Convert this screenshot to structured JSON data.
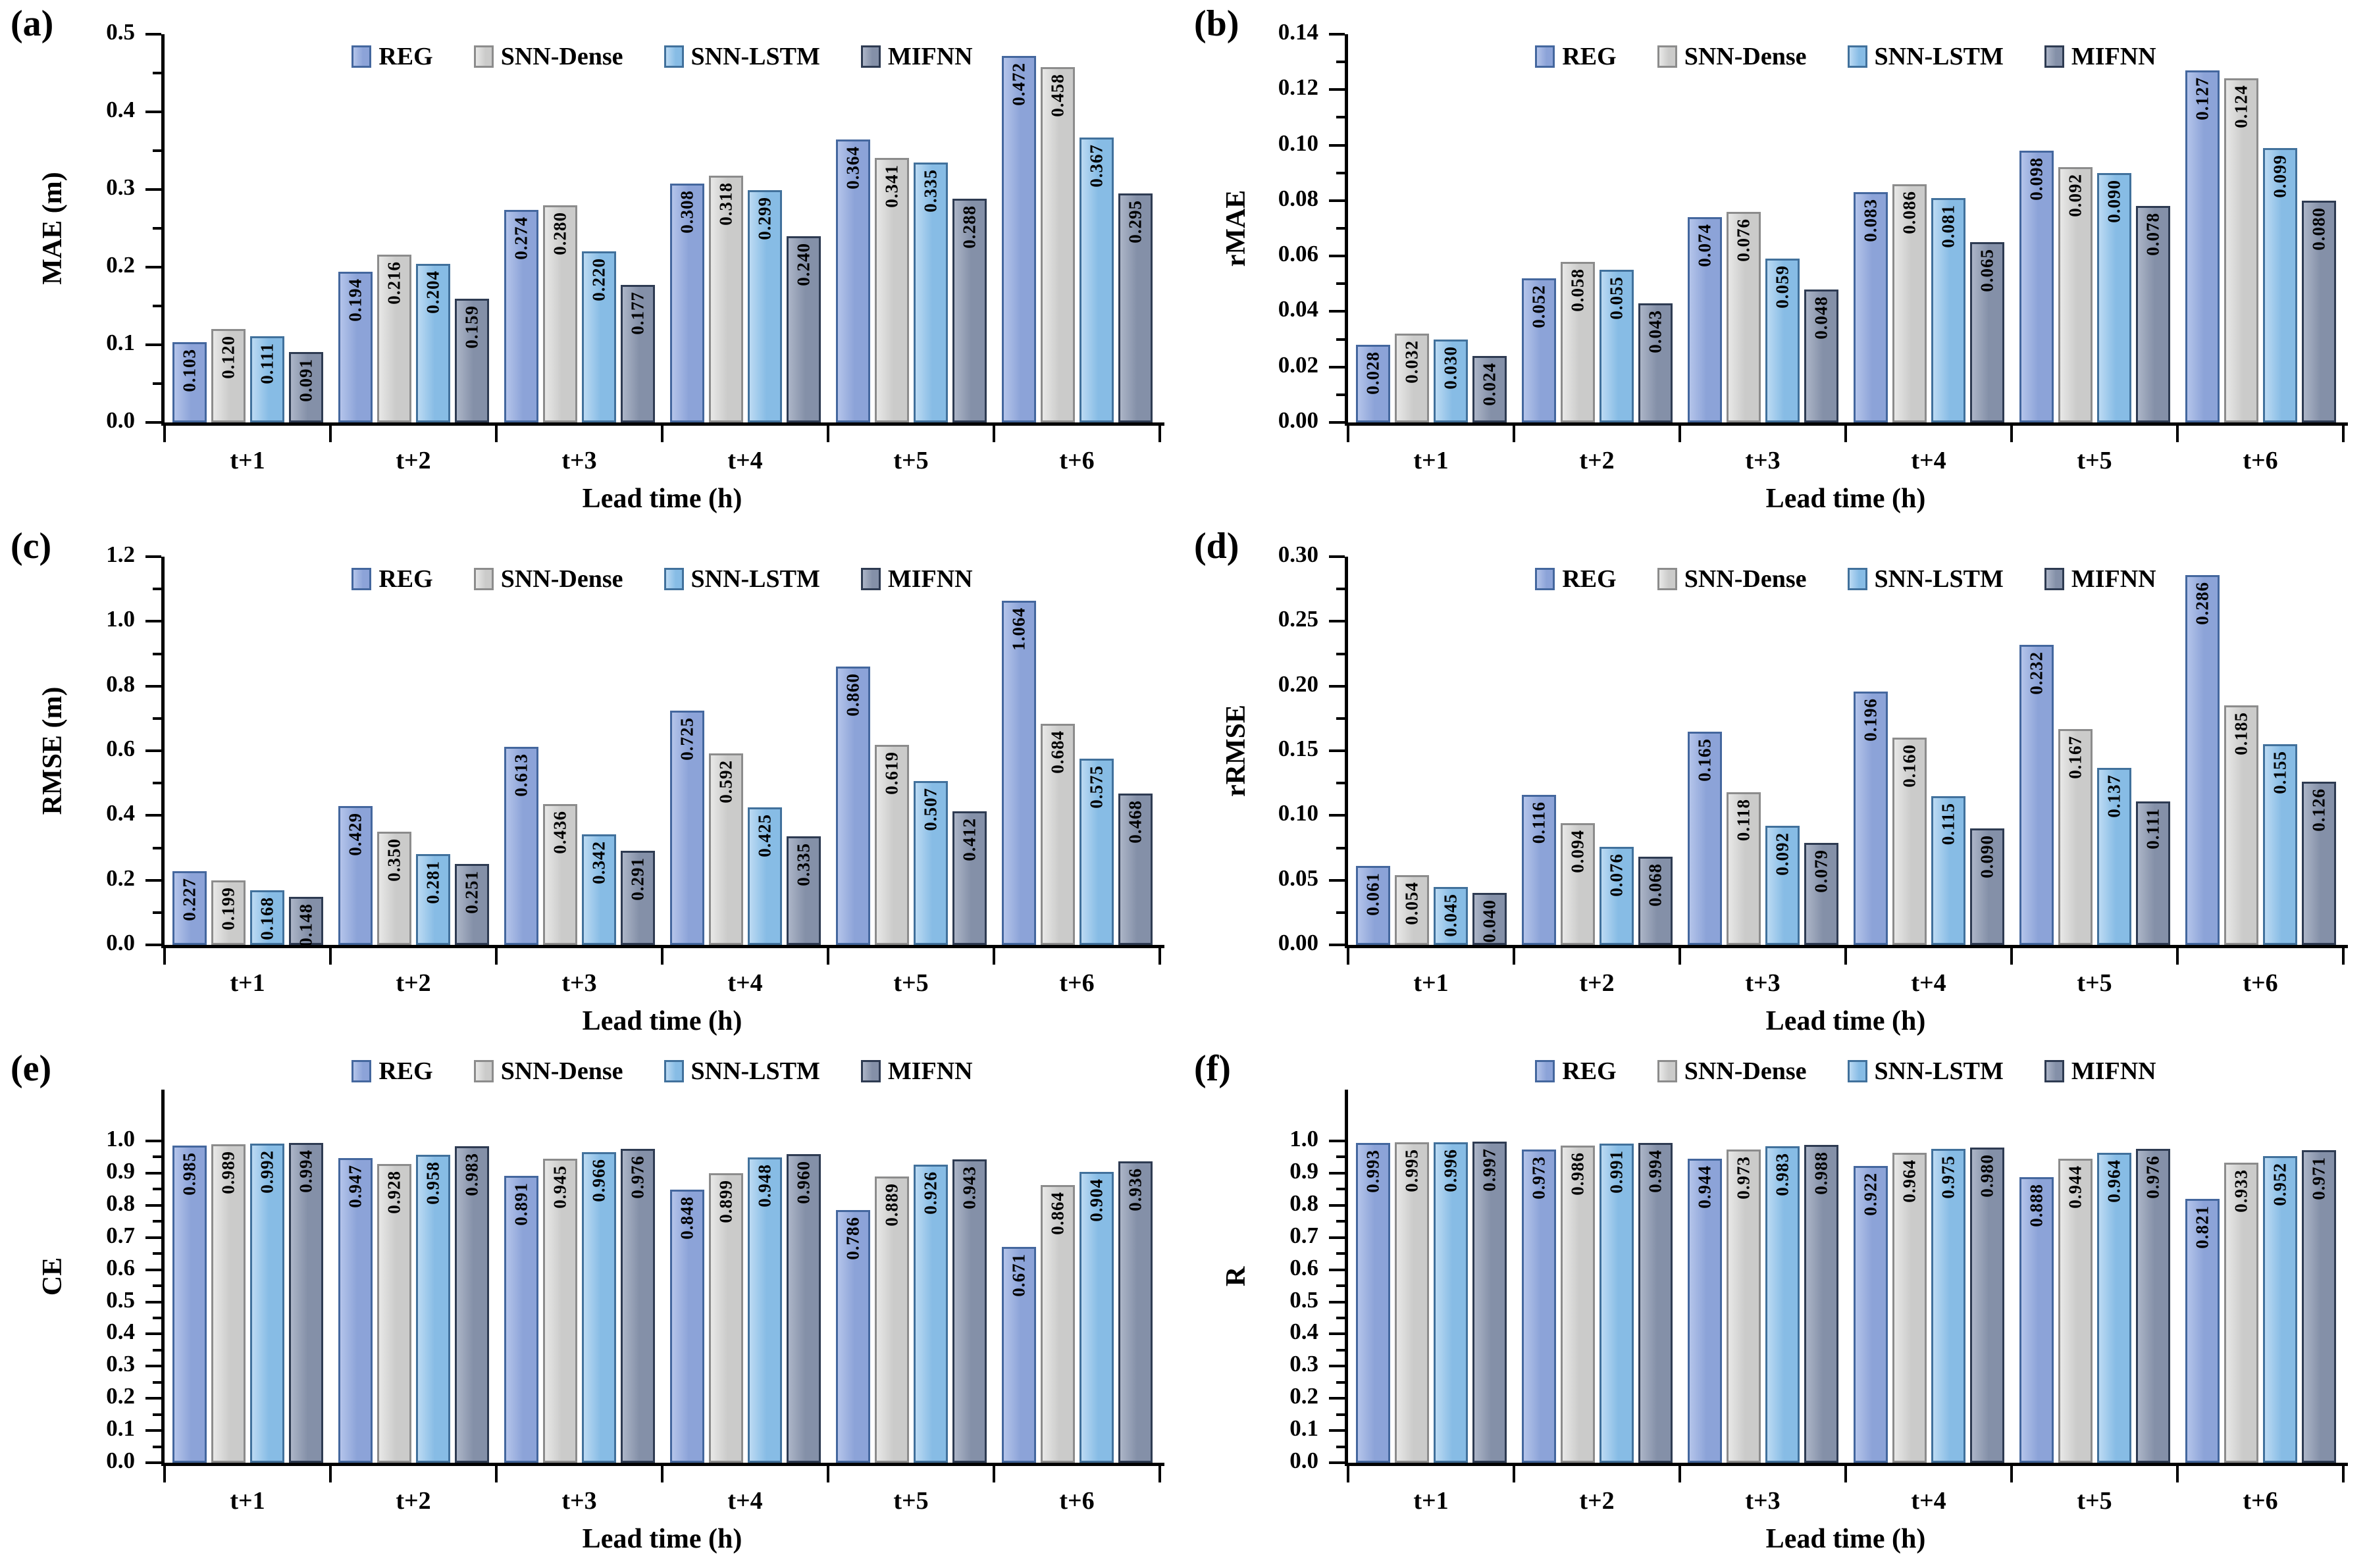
{
  "figure": {
    "xlabel": "Lead time (h)",
    "categories": [
      "t+1",
      "t+2",
      "t+3",
      "t+4",
      "t+5",
      "t+6"
    ],
    "legend": [
      "REG",
      "SNN-Dense",
      "SNN-LSTM",
      "MIFNN"
    ],
    "series_colors": [
      {
        "name": "REG",
        "fill": "#8CA3D8",
        "fill_light": "#B4C4EA",
        "border": "#44679E"
      },
      {
        "name": "SNN-Dense",
        "fill": "#CBCBCA",
        "fill_light": "#E8E8E7",
        "border": "#8C8C8C"
      },
      {
        "name": "SNN-LSTM",
        "fill": "#87BCE5",
        "fill_light": "#BBDAF3",
        "border": "#41719C"
      },
      {
        "name": "MIFNN",
        "fill": "#8490A8",
        "fill_light": "#ACB5C7",
        "border": "#2E3B52"
      }
    ]
  },
  "chart_data": [
    {
      "panel_label": "(a)",
      "type": "bar",
      "ylabel": "MAE (m)",
      "xlabel": "Lead time (h)",
      "ylim": [
        0,
        0.5
      ],
      "ytick_step": 0.1,
      "ytick_decimals": 1,
      "legend_position": "inside-top",
      "categories": [
        "t+1",
        "t+2",
        "t+3",
        "t+4",
        "t+5",
        "t+6"
      ],
      "series": [
        {
          "name": "REG",
          "values": [
            0.103,
            0.194,
            0.274,
            0.308,
            0.364,
            0.472
          ]
        },
        {
          "name": "SNN-Dense",
          "values": [
            0.12,
            0.216,
            0.28,
            0.318,
            0.341,
            0.458
          ]
        },
        {
          "name": "SNN-LSTM",
          "values": [
            0.111,
            0.204,
            0.22,
            0.299,
            0.335,
            0.367
          ]
        },
        {
          "name": "MIFNN",
          "values": [
            0.091,
            0.159,
            0.177,
            0.24,
            0.288,
            0.295
          ]
        }
      ]
    },
    {
      "panel_label": "(b)",
      "type": "bar",
      "ylabel": "rMAE",
      "xlabel": "Lead time (h)",
      "ylim": [
        0,
        0.14
      ],
      "ytick_step": 0.02,
      "ytick_decimals": 2,
      "legend_position": "inside-top",
      "categories": [
        "t+1",
        "t+2",
        "t+3",
        "t+4",
        "t+5",
        "t+6"
      ],
      "series": [
        {
          "name": "REG",
          "values": [
            0.028,
            0.052,
            0.074,
            0.083,
            0.098,
            0.127
          ]
        },
        {
          "name": "SNN-Dense",
          "values": [
            0.032,
            0.058,
            0.076,
            0.086,
            0.092,
            0.124
          ]
        },
        {
          "name": "SNN-LSTM",
          "values": [
            0.03,
            0.055,
            0.059,
            0.081,
            0.09,
            0.099
          ]
        },
        {
          "name": "MIFNN",
          "values": [
            0.024,
            0.043,
            0.048,
            0.065,
            0.078,
            0.08
          ]
        }
      ]
    },
    {
      "panel_label": "(c)",
      "type": "bar",
      "ylabel": "RMSE (m)",
      "xlabel": "Lead time (h)",
      "ylim": [
        0,
        1.2
      ],
      "ytick_step": 0.2,
      "ytick_decimals": 1,
      "legend_position": "inside-top",
      "categories": [
        "t+1",
        "t+2",
        "t+3",
        "t+4",
        "t+5",
        "t+6"
      ],
      "series": [
        {
          "name": "REG",
          "values": [
            0.227,
            0.429,
            0.613,
            0.725,
            0.86,
            1.064
          ]
        },
        {
          "name": "SNN-Dense",
          "values": [
            0.199,
            0.35,
            0.436,
            0.592,
            0.619,
            0.684
          ]
        },
        {
          "name": "SNN-LSTM",
          "values": [
            0.168,
            0.281,
            0.342,
            0.425,
            0.507,
            0.575
          ]
        },
        {
          "name": "MIFNN",
          "values": [
            0.148,
            0.251,
            0.291,
            0.335,
            0.412,
            0.468
          ]
        }
      ]
    },
    {
      "panel_label": "(d)",
      "type": "bar",
      "ylabel": "rRMSE",
      "xlabel": "Lead time (h)",
      "ylim": [
        0,
        0.3
      ],
      "ytick_step": 0.05,
      "ytick_decimals": 2,
      "legend_position": "inside-top",
      "categories": [
        "t+1",
        "t+2",
        "t+3",
        "t+4",
        "t+5",
        "t+6"
      ],
      "series": [
        {
          "name": "REG",
          "values": [
            0.061,
            0.116,
            0.165,
            0.196,
            0.232,
            0.286
          ]
        },
        {
          "name": "SNN-Dense",
          "values": [
            0.054,
            0.094,
            0.118,
            0.16,
            0.167,
            0.185
          ]
        },
        {
          "name": "SNN-LSTM",
          "values": [
            0.045,
            0.076,
            0.092,
            0.115,
            0.137,
            0.155
          ]
        },
        {
          "name": "MIFNN",
          "values": [
            0.04,
            0.068,
            0.079,
            0.09,
            0.111,
            0.126
          ]
        }
      ]
    },
    {
      "panel_label": "(e)",
      "type": "bar",
      "ylabel": "CE",
      "xlabel": "Lead time (h)",
      "ylim": [
        0,
        1.0
      ],
      "ytick_step": 0.1,
      "ytick_decimals": 1,
      "legend_position": "above",
      "categories": [
        "t+1",
        "t+2",
        "t+3",
        "t+4",
        "t+5",
        "t+6"
      ],
      "series": [
        {
          "name": "REG",
          "values": [
            0.985,
            0.947,
            0.891,
            0.848,
            0.786,
            0.671
          ]
        },
        {
          "name": "SNN-Dense",
          "values": [
            0.989,
            0.928,
            0.945,
            0.899,
            0.889,
            0.864
          ]
        },
        {
          "name": "SNN-LSTM",
          "values": [
            0.992,
            0.958,
            0.966,
            0.948,
            0.926,
            0.904
          ]
        },
        {
          "name": "MIFNN",
          "values": [
            0.994,
            0.983,
            0.976,
            0.96,
            0.943,
            0.936
          ]
        }
      ]
    },
    {
      "panel_label": "(f)",
      "type": "bar",
      "ylabel": "R",
      "xlabel": "Lead time (h)",
      "ylim": [
        0,
        1.0
      ],
      "ytick_step": 0.1,
      "ytick_decimals": 1,
      "legend_position": "above",
      "categories": [
        "t+1",
        "t+2",
        "t+3",
        "t+4",
        "t+5",
        "t+6"
      ],
      "series": [
        {
          "name": "REG",
          "values": [
            0.993,
            0.973,
            0.944,
            0.922,
            0.888,
            0.821
          ]
        },
        {
          "name": "SNN-Dense",
          "values": [
            0.995,
            0.986,
            0.973,
            0.964,
            0.944,
            0.933
          ]
        },
        {
          "name": "SNN-LSTM",
          "values": [
            0.996,
            0.991,
            0.983,
            0.975,
            0.964,
            0.952
          ]
        },
        {
          "name": "MIFNN",
          "values": [
            0.997,
            0.994,
            0.988,
            0.98,
            0.976,
            0.971
          ]
        }
      ]
    }
  ]
}
